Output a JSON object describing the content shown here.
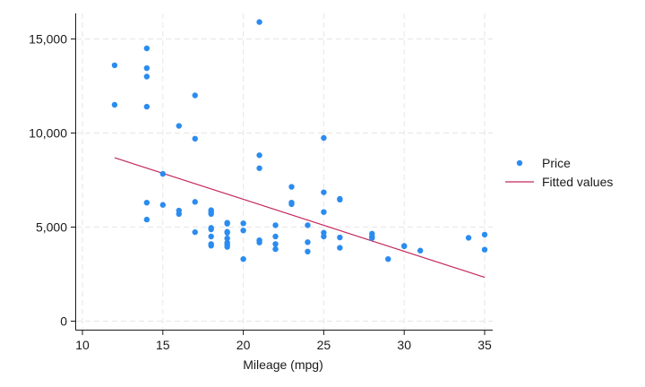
{
  "chart_data": {
    "type": "scatter",
    "title": "",
    "xlabel": "Mileage (mpg)",
    "ylabel": "",
    "xlim": [
      10,
      35.5
    ],
    "ylim": [
      0,
      16000
    ],
    "xticks": [
      10,
      15,
      20,
      25,
      30,
      35
    ],
    "xtick_labels": [
      "10",
      "15",
      "20",
      "25",
      "30",
      "35"
    ],
    "yticks": [
      0,
      5000,
      10000,
      15000
    ],
    "ytick_labels": [
      "0",
      "5,000",
      "10,000",
      "15,000"
    ],
    "grid": true,
    "legend_position": "right",
    "series": [
      {
        "name": "Price",
        "type": "scatter",
        "color": "#2b8cf0",
        "points": [
          [
            12,
            13600
          ],
          [
            12,
            11500
          ],
          [
            14,
            14500
          ],
          [
            14,
            13450
          ],
          [
            14,
            13000
          ],
          [
            14,
            11400
          ],
          [
            14,
            6300
          ],
          [
            14,
            5400
          ],
          [
            15,
            7830
          ],
          [
            15,
            6180
          ],
          [
            16,
            10380
          ],
          [
            16,
            5880
          ],
          [
            16,
            5700
          ],
          [
            17,
            12000
          ],
          [
            17,
            9700
          ],
          [
            17,
            6340
          ],
          [
            17,
            4730
          ],
          [
            18,
            5900
          ],
          [
            18,
            5800
          ],
          [
            18,
            5700
          ],
          [
            18,
            4960
          ],
          [
            18,
            4880
          ],
          [
            18,
            4500
          ],
          [
            18,
            4100
          ],
          [
            18,
            4010
          ],
          [
            19,
            5230
          ],
          [
            19,
            5180
          ],
          [
            19,
            4750
          ],
          [
            19,
            4700
          ],
          [
            19,
            4400
          ],
          [
            19,
            4180
          ],
          [
            19,
            4070
          ],
          [
            19,
            3950
          ],
          [
            20,
            5200
          ],
          [
            20,
            4820
          ],
          [
            20,
            3300
          ],
          [
            21,
            15900
          ],
          [
            21,
            8820
          ],
          [
            21,
            8130
          ],
          [
            21,
            4300
          ],
          [
            21,
            4180
          ],
          [
            22,
            5100
          ],
          [
            22,
            4500
          ],
          [
            22,
            4100
          ],
          [
            22,
            3830
          ],
          [
            23,
            7140
          ],
          [
            23,
            6300
          ],
          [
            23,
            6220
          ],
          [
            24,
            5100
          ],
          [
            24,
            4200
          ],
          [
            24,
            3700
          ],
          [
            25,
            9740
          ],
          [
            25,
            6850
          ],
          [
            25,
            5800
          ],
          [
            25,
            4700
          ],
          [
            25,
            4500
          ],
          [
            26,
            6500
          ],
          [
            26,
            6460
          ],
          [
            26,
            4450
          ],
          [
            26,
            3900
          ],
          [
            28,
            4650
          ],
          [
            28,
            4500
          ],
          [
            28,
            4420
          ],
          [
            29,
            3300
          ],
          [
            30,
            4000
          ],
          [
            30,
            3980
          ],
          [
            31,
            3750
          ],
          [
            34,
            4430
          ],
          [
            35,
            4600
          ],
          [
            35,
            3800
          ]
        ]
      },
      {
        "name": "Fitted values",
        "type": "line",
        "color": "#c4285c",
        "x": [
          12,
          35
        ],
        "y": [
          8690,
          2330
        ]
      }
    ]
  }
}
